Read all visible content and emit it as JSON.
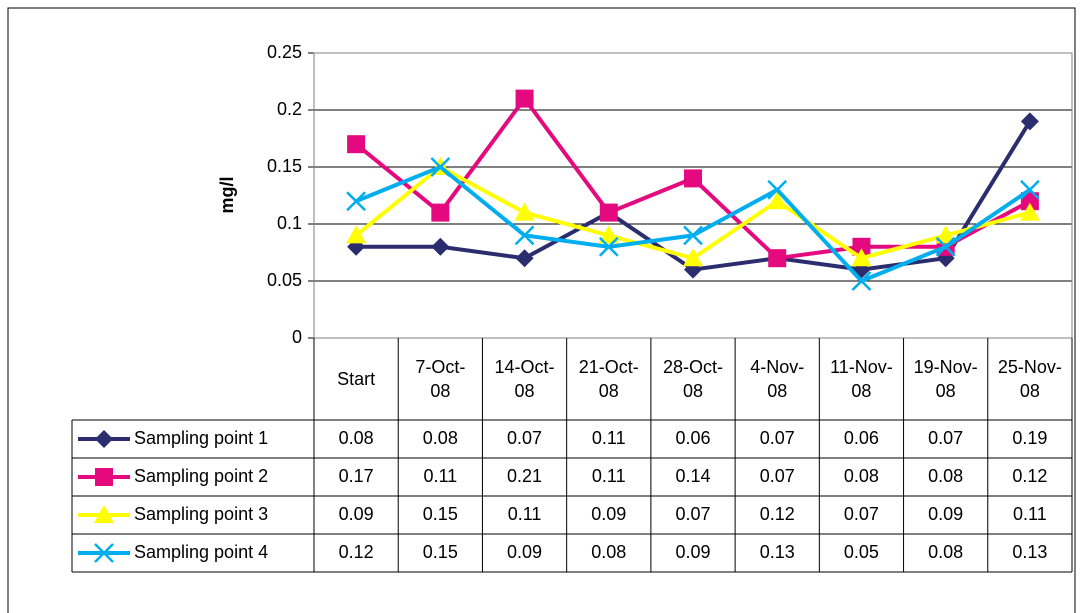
{
  "chart_data": {
    "type": "line",
    "y_label": "mg/l",
    "categories": [
      "Start",
      "7-Oct-08",
      "14-Oct-08",
      "21-Oct-08",
      "28-Oct-08",
      "4-Nov-08",
      "11-Nov-08",
      "19-Nov-08",
      "25-Nov-08"
    ],
    "series": [
      {
        "name": "Sampling point 1",
        "color": "#2b2d6e",
        "marker": "diamond",
        "values": [
          0.08,
          0.08,
          0.07,
          0.11,
          0.06,
          0.07,
          0.06,
          0.07,
          0.19
        ]
      },
      {
        "name": "Sampling point 2",
        "color": "#e5097f",
        "marker": "square",
        "values": [
          0.17,
          0.11,
          0.21,
          0.11,
          0.14,
          0.07,
          0.08,
          0.08,
          0.12
        ]
      },
      {
        "name": "Sampling point 3",
        "color": "#ffff00",
        "marker": "triangle",
        "values": [
          0.09,
          0.15,
          0.11,
          0.09,
          0.07,
          0.12,
          0.07,
          0.09,
          0.11
        ]
      },
      {
        "name": "Sampling point 4",
        "color": "#00aeef",
        "marker": "x",
        "values": [
          0.12,
          0.15,
          0.09,
          0.08,
          0.09,
          0.13,
          0.05,
          0.08,
          0.13
        ]
      }
    ],
    "ylim": [
      0,
      0.25
    ],
    "yticks": [
      0,
      0.05,
      0.1,
      0.15,
      0.2,
      0.25
    ],
    "grid": true
  }
}
